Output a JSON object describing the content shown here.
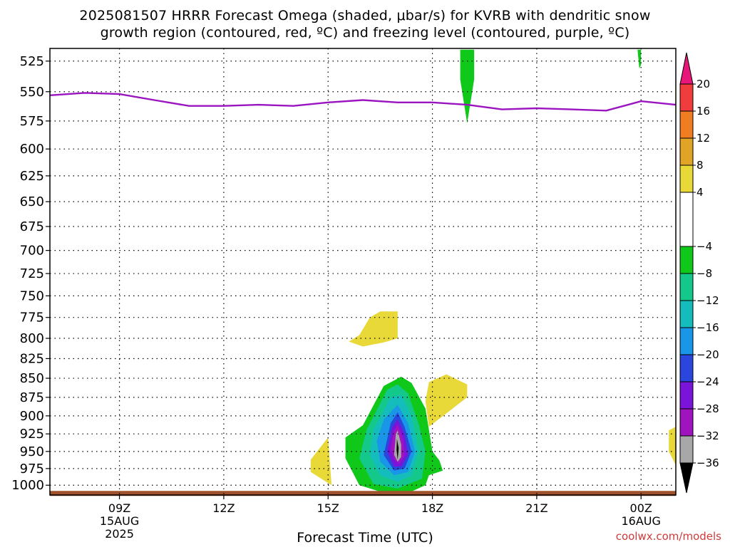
{
  "title": {
    "line1": "2025081507 HRRR Forecast Omega (shaded, μbar/s) for KVRB with dendritic snow",
    "line2": "growth region (contoured, red, ºC) and freezing level (contoured, purple, ºC)"
  },
  "credit": "coolwx.com/models",
  "chart_data": {
    "type": "heatmap",
    "xlabel": "Forecast Time (UTC)",
    "ylabel": "",
    "y_axis": {
      "ticks": [
        525,
        550,
        575,
        600,
        625,
        650,
        675,
        700,
        725,
        750,
        775,
        800,
        825,
        850,
        875,
        900,
        925,
        950,
        975,
        1000
      ],
      "range": [
        1015,
        515
      ],
      "units": "hPa",
      "scale": "log-pressure"
    },
    "x_axis": {
      "range_hours_utc": [
        7,
        25
      ],
      "ticks": [
        {
          "hour": 9,
          "label": "09Z",
          "sub1": "15AUG",
          "sub2": "2025"
        },
        {
          "hour": 12,
          "label": "12Z",
          "sub1": "",
          "sub2": ""
        },
        {
          "hour": 15,
          "label": "15Z",
          "sub1": "",
          "sub2": ""
        },
        {
          "hour": 18,
          "label": "18Z",
          "sub1": "",
          "sub2": ""
        },
        {
          "hour": 21,
          "label": "21Z",
          "sub1": "",
          "sub2": ""
        },
        {
          "hour": 24,
          "label": "00Z",
          "sub1": "16AUG",
          "sub2": ""
        }
      ]
    },
    "grid": true,
    "colorbar": {
      "labels": [
        "20",
        "16",
        "12",
        "8",
        "4",
        "−4",
        "−8",
        "−12",
        "−16",
        "−20",
        "−24",
        "−28",
        "−32",
        "−36"
      ],
      "bands": [
        {
          "from": 20,
          "to": 24,
          "color": "#e8167a"
        },
        {
          "from": 16,
          "to": 20,
          "color": "#f03c3c"
        },
        {
          "from": 12,
          "to": 16,
          "color": "#f07d22"
        },
        {
          "from": 8,
          "to": 12,
          "color": "#e0a526"
        },
        {
          "from": 4,
          "to": 8,
          "color": "#e8d838"
        },
        {
          "from": -4,
          "to": 4,
          "color": "#ffffff"
        },
        {
          "from": -8,
          "to": -4,
          "color": "#10c81a"
        },
        {
          "from": -12,
          "to": -8,
          "color": "#14c88c"
        },
        {
          "from": -16,
          "to": -12,
          "color": "#14bcbc"
        },
        {
          "from": -20,
          "to": -16,
          "color": "#1a96e8"
        },
        {
          "from": -24,
          "to": -20,
          "color": "#2a46dc"
        },
        {
          "from": -28,
          "to": -24,
          "color": "#7a14d8"
        },
        {
          "from": -32,
          "to": -28,
          "color": "#a014c0"
        },
        {
          "from": -36,
          "to": -32,
          "color": "#a8a8a8"
        },
        {
          "from": -40,
          "to": -36,
          "color": "#000000"
        }
      ]
    },
    "freezing_level": {
      "color": "#9a14c0",
      "points": [
        {
          "hour": 7.0,
          "p": 553
        },
        {
          "hour": 8.0,
          "p": 551
        },
        {
          "hour": 9.0,
          "p": 552
        },
        {
          "hour": 10.0,
          "p": 557
        },
        {
          "hour": 11.0,
          "p": 562
        },
        {
          "hour": 12.0,
          "p": 562
        },
        {
          "hour": 13.0,
          "p": 561
        },
        {
          "hour": 14.0,
          "p": 562
        },
        {
          "hour": 15.0,
          "p": 559
        },
        {
          "hour": 16.0,
          "p": 557
        },
        {
          "hour": 17.0,
          "p": 559
        },
        {
          "hour": 18.0,
          "p": 559
        },
        {
          "hour": 19.0,
          "p": 561
        },
        {
          "hour": 20.0,
          "p": 565
        },
        {
          "hour": 21.0,
          "p": 564
        },
        {
          "hour": 22.0,
          "p": 565
        },
        {
          "hour": 23.0,
          "p": 566
        },
        {
          "hour": 24.0,
          "p": 558
        },
        {
          "hour": 25.0,
          "p": 561
        }
      ]
    },
    "surface": {
      "color": "#a0522d",
      "p": 1012
    },
    "omega_regions": [
      {
        "level": 4,
        "color": "#e8d838",
        "points": [
          [
            15.9,
            796
          ],
          [
            16.2,
            775
          ],
          [
            16.5,
            768
          ],
          [
            17.0,
            768
          ],
          [
            17.0,
            800
          ],
          [
            16.6,
            805
          ],
          [
            16.0,
            810
          ],
          [
            15.6,
            804
          ]
        ]
      },
      {
        "level": 4,
        "color": "#e8d838",
        "points": [
          [
            17.9,
            855
          ],
          [
            18.4,
            845
          ],
          [
            19.0,
            858
          ],
          [
            19.0,
            875
          ],
          [
            18.5,
            893
          ],
          [
            17.9,
            915
          ],
          [
            17.8,
            880
          ]
        ]
      },
      {
        "level": 4,
        "color": "#e8d838",
        "points": [
          [
            14.5,
            962
          ],
          [
            15.0,
            930
          ],
          [
            15.1,
            1000
          ],
          [
            14.5,
            980
          ]
        ]
      },
      {
        "level": 4,
        "color": "#e8d838",
        "points": [
          [
            24.8,
            920
          ],
          [
            25.0,
            915
          ],
          [
            25.0,
            970
          ],
          [
            24.8,
            950
          ]
        ]
      },
      {
        "level": -4,
        "color": "#10c81a",
        "points": [
          [
            18.8,
            516
          ],
          [
            19.2,
            516
          ],
          [
            19.2,
            540
          ],
          [
            19.0,
            577
          ],
          [
            18.8,
            540
          ]
        ]
      },
      {
        "level": -4,
        "color": "#10c81a",
        "points": [
          [
            23.9,
            516
          ],
          [
            24.0,
            516
          ],
          [
            24.0,
            528
          ],
          [
            23.95,
            531
          ]
        ]
      },
      {
        "level": -4,
        "color": "#10c81a",
        "points": [
          [
            16.0,
            913
          ],
          [
            16.6,
            860
          ],
          [
            17.1,
            848
          ],
          [
            17.4,
            856
          ],
          [
            17.8,
            890
          ],
          [
            18.0,
            950
          ],
          [
            18.2,
            963
          ],
          [
            18.3,
            978
          ],
          [
            17.9,
            985
          ],
          [
            17.8,
            1000
          ],
          [
            17.3,
            1012
          ],
          [
            16.5,
            1010
          ],
          [
            15.9,
            1000
          ],
          [
            15.5,
            960
          ],
          [
            15.5,
            930
          ]
        ]
      },
      {
        "level": -8,
        "color": "#14c88c",
        "points": [
          [
            16.1,
            920
          ],
          [
            16.7,
            865
          ],
          [
            17.0,
            858
          ],
          [
            17.3,
            870
          ],
          [
            17.6,
            910
          ],
          [
            17.8,
            950
          ],
          [
            17.7,
            990
          ],
          [
            17.0,
            1005
          ],
          [
            16.3,
            998
          ],
          [
            15.9,
            960
          ]
        ]
      },
      {
        "level": -12,
        "color": "#14bcbc",
        "points": [
          [
            16.3,
            920
          ],
          [
            16.8,
            875
          ],
          [
            17.1,
            872
          ],
          [
            17.4,
            900
          ],
          [
            17.6,
            950
          ],
          [
            17.4,
            985
          ],
          [
            17.0,
            995
          ],
          [
            16.5,
            985
          ],
          [
            16.2,
            955
          ]
        ]
      },
      {
        "level": -16,
        "color": "#1a96e8",
        "points": [
          [
            16.6,
            905
          ],
          [
            17.0,
            885
          ],
          [
            17.3,
            910
          ],
          [
            17.5,
            950
          ],
          [
            17.3,
            980
          ],
          [
            16.9,
            985
          ],
          [
            16.5,
            965
          ],
          [
            16.4,
            935
          ]
        ]
      },
      {
        "level": -20,
        "color": "#2a46dc",
        "points": [
          [
            16.8,
            910
          ],
          [
            17.0,
            895
          ],
          [
            17.2,
            915
          ],
          [
            17.4,
            950
          ],
          [
            17.2,
            975
          ],
          [
            16.9,
            978
          ],
          [
            16.6,
            955
          ]
        ]
      },
      {
        "level": -24,
        "color": "#7a14d8",
        "points": [
          [
            16.85,
            915
          ],
          [
            17.0,
            905
          ],
          [
            17.2,
            925
          ],
          [
            17.3,
            955
          ],
          [
            17.1,
            972
          ],
          [
            16.9,
            972
          ],
          [
            16.7,
            950
          ]
        ]
      },
      {
        "level": -28,
        "color": "#a014c0",
        "points": [
          [
            16.9,
            920
          ],
          [
            17.0,
            912
          ],
          [
            17.15,
            932
          ],
          [
            17.2,
            955
          ],
          [
            17.05,
            968
          ],
          [
            16.9,
            962
          ],
          [
            16.8,
            945
          ]
        ]
      },
      {
        "level": -32,
        "color": "#a8a8a8",
        "points": [
          [
            16.95,
            925
          ],
          [
            17.0,
            920
          ],
          [
            17.1,
            940
          ],
          [
            17.1,
            958
          ],
          [
            17.0,
            965
          ],
          [
            16.9,
            955
          ]
        ]
      },
      {
        "level": -36,
        "color": "#000000",
        "points": [
          [
            16.98,
            932
          ],
          [
            17.03,
            945
          ],
          [
            17.0,
            962
          ],
          [
            16.97,
            948
          ]
        ]
      }
    ]
  }
}
